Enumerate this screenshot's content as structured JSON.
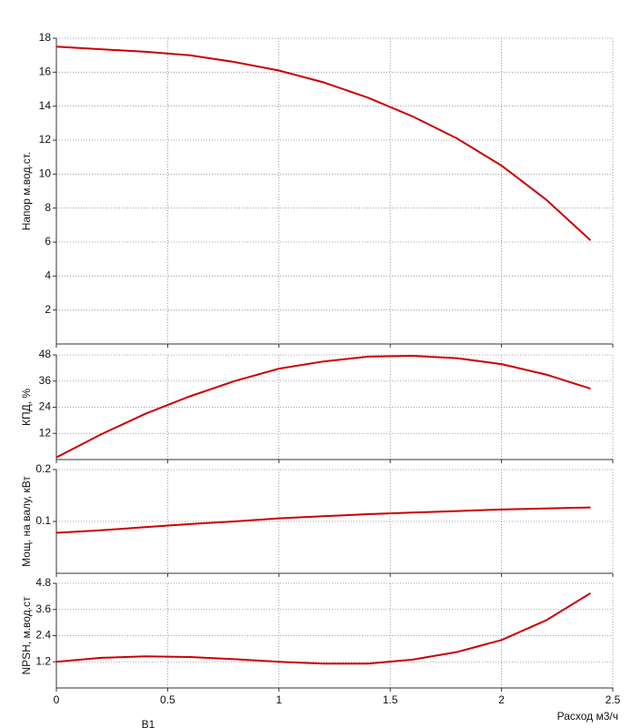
{
  "chart_data": [
    {
      "type": "line",
      "ylabel": "Напор м.вод.ст.",
      "xlim": [
        0,
        2.5
      ],
      "xticks": [
        0,
        0.5,
        1,
        1.5,
        2,
        2.5
      ],
      "ylim": [
        0,
        18
      ],
      "yticks": [
        2,
        4,
        6,
        8,
        10,
        12,
        14,
        16,
        18
      ],
      "grid": true,
      "x": [
        0,
        0.2,
        0.4,
        0.6,
        0.8,
        1.0,
        1.2,
        1.4,
        1.6,
        1.8,
        2.0,
        2.2,
        2.4
      ],
      "series": [
        {
          "color": "#cc0000",
          "values": [
            17.5,
            17.35,
            17.2,
            17.0,
            16.6,
            16.1,
            15.4,
            14.5,
            13.4,
            12.1,
            10.5,
            8.5,
            6.1
          ]
        }
      ]
    },
    {
      "type": "line",
      "ylabel": "КПД, %",
      "xlim": [
        0,
        2.5
      ],
      "xticks": [
        0,
        0.5,
        1,
        1.5,
        2,
        2.5
      ],
      "ylim": [
        0,
        48
      ],
      "yticks": [
        12,
        24,
        36,
        48
      ],
      "grid": true,
      "x": [
        0,
        0.2,
        0.4,
        0.6,
        0.8,
        1.0,
        1.2,
        1.4,
        1.6,
        1.8,
        2.0,
        2.2,
        2.4
      ],
      "series": [
        {
          "color": "#cc0000",
          "values": [
            1,
            11.5,
            21,
            29,
            36,
            41.7,
            45,
            47.2,
            47.6,
            46.5,
            43.8,
            39,
            32.5
          ]
        }
      ]
    },
    {
      "type": "line",
      "ylabel": "Мощ. на валу, кВт",
      "xlim": [
        0,
        2.5
      ],
      "xticks": [
        0,
        0.5,
        1,
        1.5,
        2,
        2.5
      ],
      "ylim": [
        0,
        0.2
      ],
      "yticks": [
        0.1,
        0.2
      ],
      "grid": true,
      "x": [
        0,
        0.2,
        0.4,
        0.6,
        0.8,
        1.0,
        1.2,
        1.4,
        1.6,
        1.8,
        2.0,
        2.2,
        2.4
      ],
      "series": [
        {
          "color": "#cc0000",
          "values": [
            0.078,
            0.083,
            0.089,
            0.095,
            0.1,
            0.106,
            0.11,
            0.114,
            0.117,
            0.12,
            0.123,
            0.125,
            0.127
          ]
        }
      ]
    },
    {
      "type": "line",
      "ylabel": "NPSH, м.вод.ст",
      "xlabel": "Расход м3/ч",
      "note": "В1",
      "xlim": [
        0,
        2.5
      ],
      "xticks": [
        0,
        0.5,
        1,
        1.5,
        2,
        2.5
      ],
      "ylim": [
        0,
        4.8
      ],
      "yticks": [
        1.2,
        2.4,
        3.6,
        4.8
      ],
      "grid": true,
      "x": [
        0,
        0.2,
        0.4,
        0.6,
        0.8,
        1.0,
        1.2,
        1.4,
        1.6,
        1.8,
        2.0,
        2.2,
        2.4
      ],
      "series": [
        {
          "color": "#cc0000",
          "values": [
            1.2,
            1.38,
            1.45,
            1.42,
            1.32,
            1.2,
            1.12,
            1.12,
            1.3,
            1.65,
            2.2,
            3.1,
            4.35
          ]
        }
      ]
    }
  ]
}
